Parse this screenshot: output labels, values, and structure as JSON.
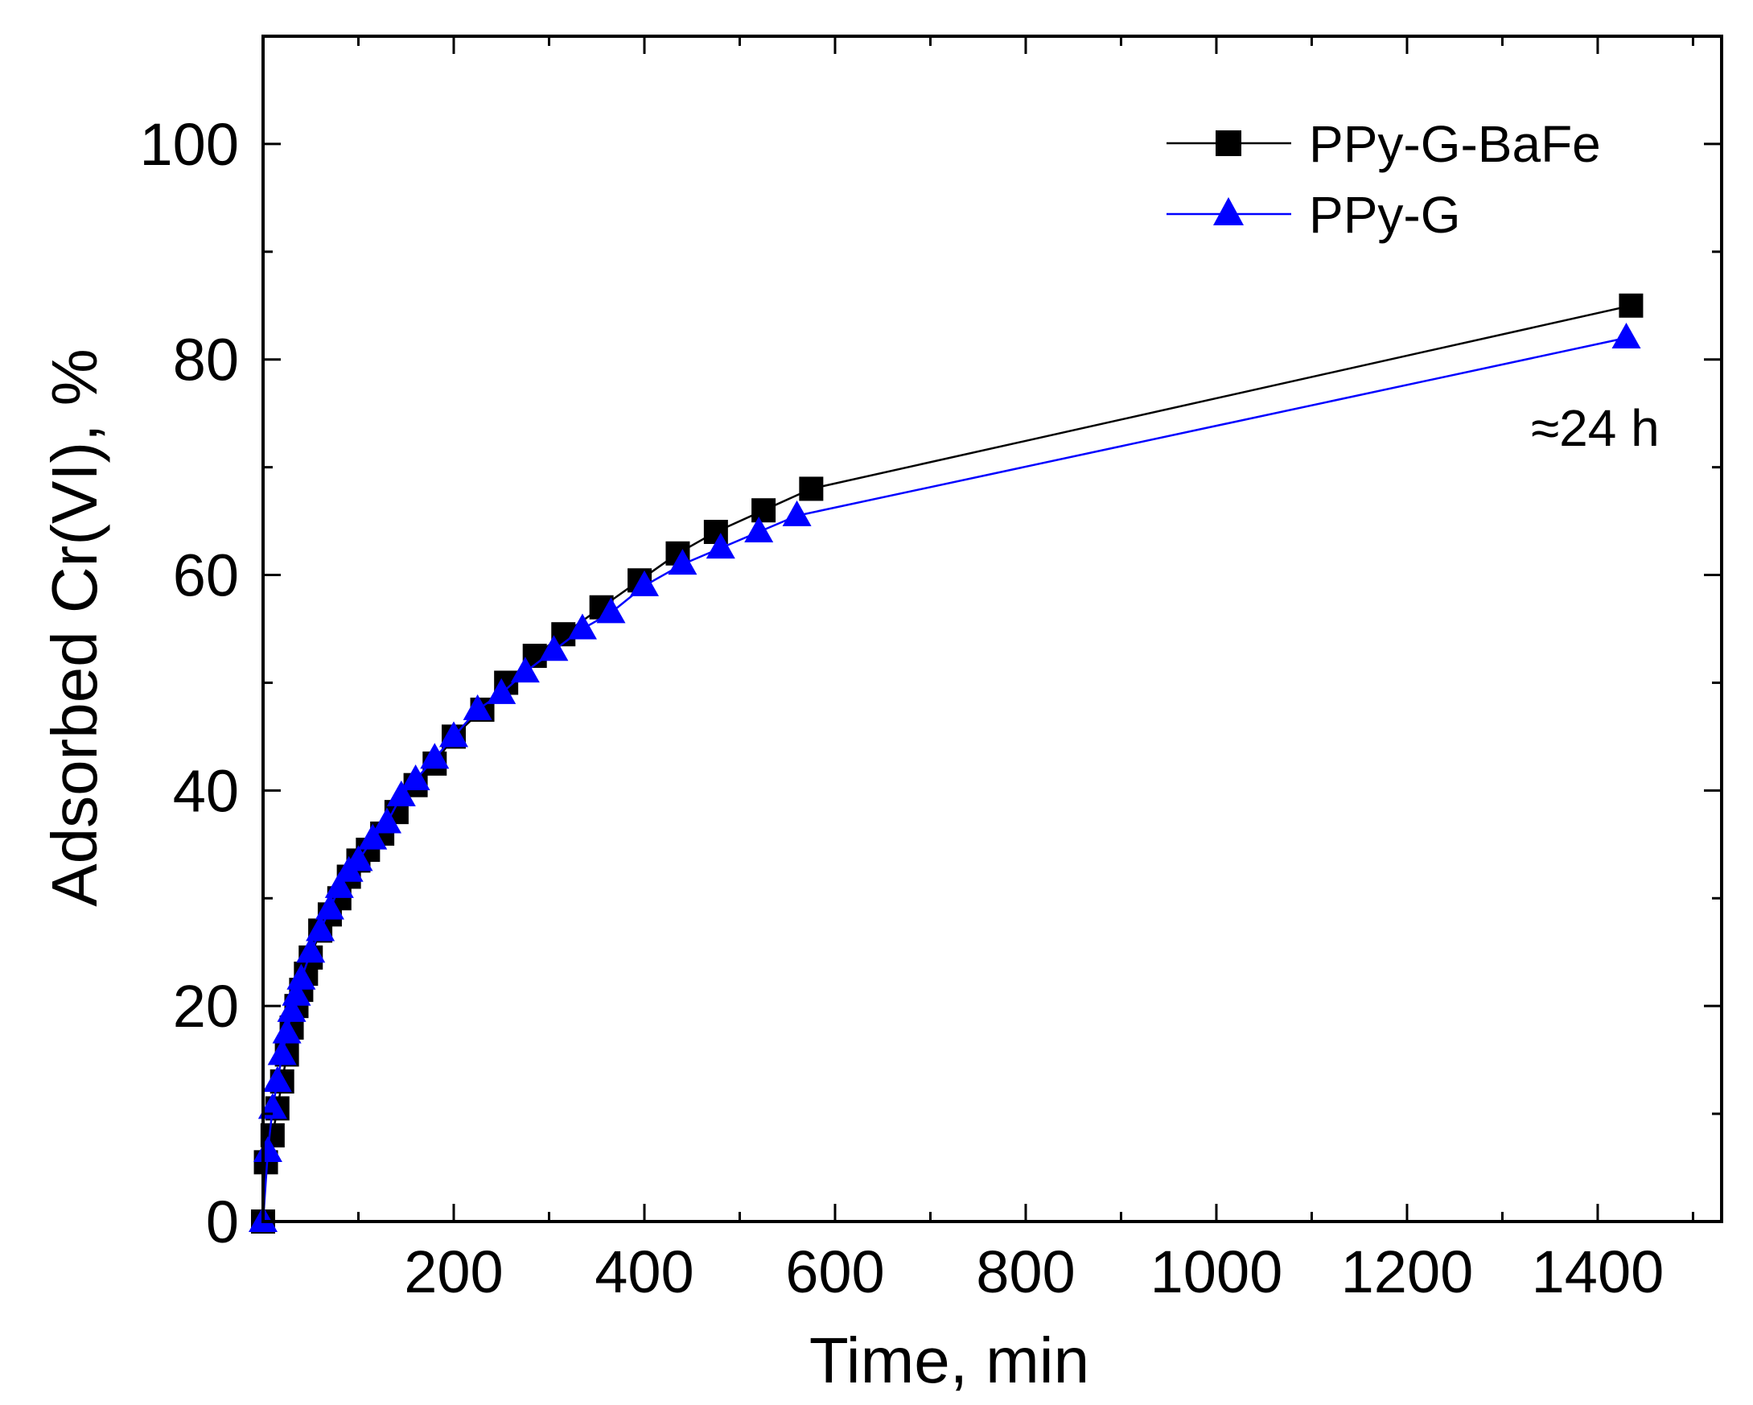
{
  "chart_data": {
    "type": "line",
    "title": "",
    "xlabel": "Time, min",
    "ylabel": "Adsorbed Cr(VI), %",
    "xlim": [
      0,
      1530
    ],
    "ylim": [
      0,
      110
    ],
    "xticks": [
      200,
      400,
      600,
      800,
      1000,
      1200,
      1400
    ],
    "xtick_labels": [
      "200",
      "400",
      "600",
      "800",
      "1000",
      "1200",
      "1400"
    ],
    "yticks": [
      0,
      20,
      40,
      60,
      80,
      100
    ],
    "ytick_labels": [
      "0",
      "20",
      "40",
      "60",
      "80",
      "100"
    ],
    "grid": false,
    "legend_position": "top-right",
    "annotations": [
      {
        "text": "≈24 h",
        "x": 1380,
        "y": 74
      }
    ],
    "series": [
      {
        "name": "PPy-G-BaFe",
        "color": "#000000",
        "marker": "square",
        "x": [
          0,
          3,
          10,
          15,
          20,
          25,
          30,
          35,
          40,
          45,
          50,
          60,
          70,
          80,
          90,
          100,
          110,
          125,
          140,
          160,
          180,
          200,
          230,
          255,
          285,
          315,
          355,
          395,
          435,
          475,
          525,
          575,
          1435
        ],
        "y": [
          0,
          5.5,
          8,
          10.5,
          13,
          15.5,
          18,
          20,
          21.5,
          23,
          24.5,
          27,
          28.5,
          30,
          32,
          33.5,
          34.5,
          36,
          38,
          40.5,
          42.5,
          45,
          47.5,
          50,
          52.5,
          54.5,
          57,
          59.5,
          62,
          64,
          66,
          68,
          85
        ]
      },
      {
        "name": "PPy-G",
        "color": "#0000ff",
        "marker": "triangle",
        "x": [
          0,
          5,
          10,
          15,
          20,
          25,
          30,
          35,
          40,
          50,
          60,
          70,
          80,
          90,
          100,
          115,
          130,
          145,
          160,
          180,
          200,
          225,
          250,
          275,
          305,
          335,
          365,
          400,
          440,
          480,
          520,
          560,
          1430
        ],
        "y": [
          0,
          6.5,
          10.5,
          13,
          15.5,
          17.5,
          19.5,
          21,
          22.5,
          25,
          27,
          29,
          31,
          32.5,
          33.5,
          35.5,
          37,
          39.5,
          41,
          43,
          45,
          47.5,
          49,
          51,
          53,
          55,
          56.5,
          59,
          61,
          62.5,
          64,
          65.5,
          82
        ]
      }
    ]
  }
}
